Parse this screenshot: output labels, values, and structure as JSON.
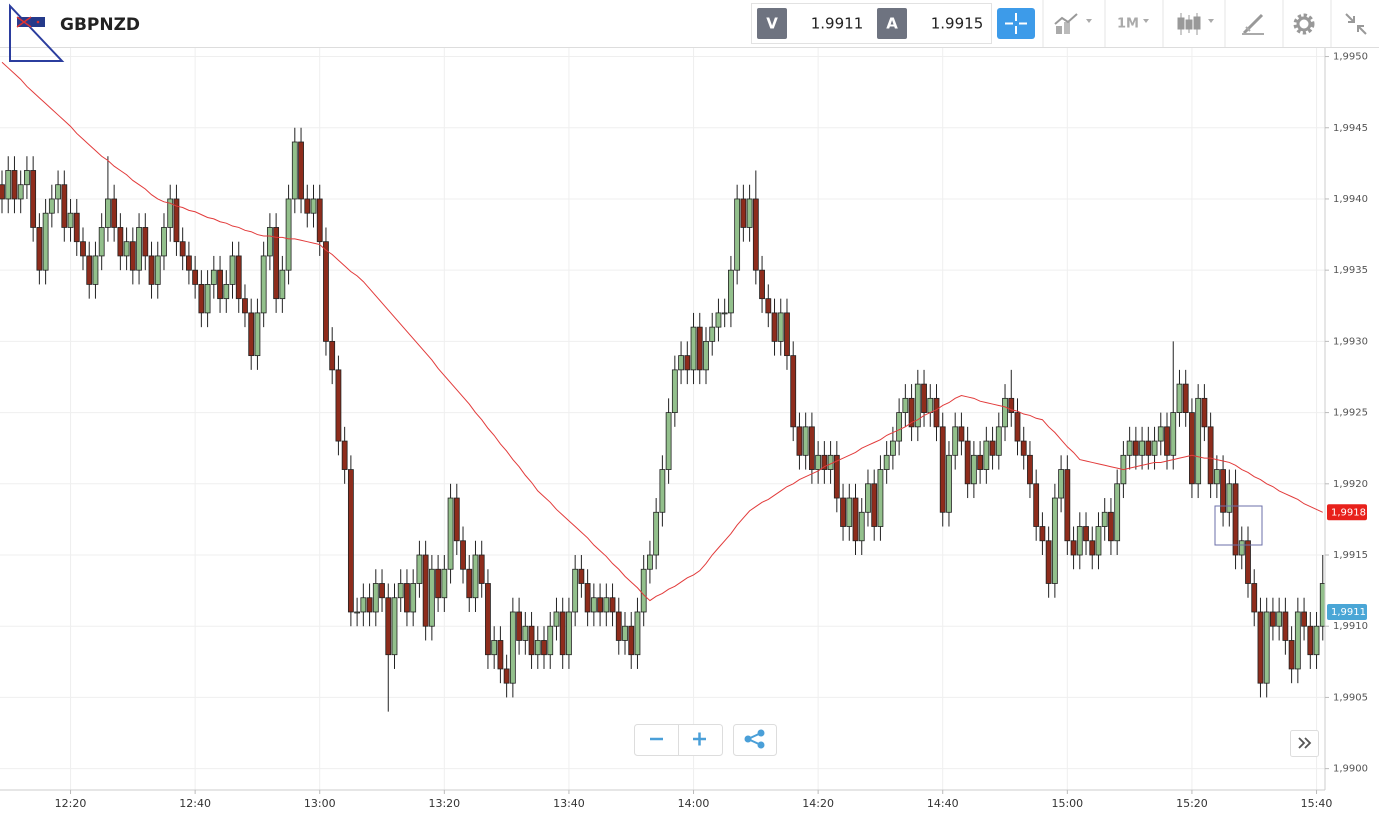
{
  "toolbar": {
    "symbol": "GBPNZD",
    "bid_label": "V",
    "bid": 1.9911,
    "ask_label": "A",
    "ask": 1.9915,
    "timeframe": "1M"
  },
  "chart_data": {
    "type": "candlestick",
    "categories": [
      null,
      null,
      null,
      null,
      null,
      null,
      null,
      null,
      null,
      null,
      null,
      "12:20",
      null,
      null,
      null,
      null,
      null,
      null,
      null,
      null,
      null,
      null,
      null,
      null,
      null,
      null,
      null,
      null,
      null,
      null,
      null,
      "12:40",
      null,
      null,
      null,
      null,
      null,
      null,
      null,
      null,
      null,
      null,
      null,
      null,
      null,
      null,
      null,
      null,
      null,
      null,
      null,
      "13:00",
      null,
      null,
      null,
      null,
      null,
      null,
      null,
      null,
      null,
      null,
      null,
      null,
      null,
      null,
      null,
      null,
      null,
      null,
      null,
      "13:20",
      null,
      null,
      null,
      null,
      null,
      null,
      null,
      null,
      null,
      null,
      null,
      null,
      null,
      null,
      null,
      null,
      null,
      null,
      null,
      "13:40",
      null,
      null,
      null,
      null,
      null,
      null,
      null,
      null,
      null,
      null,
      null,
      null,
      null,
      null,
      null,
      null,
      null,
      null,
      null,
      "14:00",
      null,
      null,
      null,
      null,
      null,
      null,
      null,
      null,
      null,
      null,
      null,
      null,
      null,
      null,
      null,
      null,
      null,
      null,
      null,
      "14:20",
      null,
      null,
      null,
      null,
      null,
      null,
      null,
      null,
      null,
      null,
      null,
      null,
      null,
      null,
      null,
      null,
      null,
      null,
      null,
      "14:40",
      null,
      null,
      null,
      null,
      null,
      null,
      null,
      null,
      null,
      null,
      null,
      null,
      null,
      null,
      null,
      null,
      null,
      null,
      null,
      "15:00",
      null,
      null,
      null,
      null,
      null,
      null,
      null,
      null,
      null,
      null,
      null,
      null,
      null,
      null,
      null,
      null,
      null,
      null,
      null,
      "15:20",
      null,
      null,
      null,
      null,
      null,
      null,
      null,
      null,
      null,
      null,
      null,
      null,
      null,
      null,
      null,
      null,
      null,
      null,
      null,
      "15:40",
      null
    ],
    "open": [
      1.9941,
      1.994,
      1.9942,
      1.994,
      1.9941,
      1.9942,
      1.9938,
      1.9935,
      1.9939,
      1.994,
      1.9941,
      1.9938,
      1.9939,
      1.9937,
      1.9936,
      1.9934,
      1.9936,
      1.9938,
      1.994,
      1.9938,
      1.9936,
      1.9937,
      1.9935,
      1.9938,
      1.9936,
      1.9934,
      1.9936,
      1.9938,
      1.994,
      1.9937,
      1.9936,
      1.9935,
      1.9934,
      1.9932,
      1.9934,
      1.9935,
      1.9933,
      1.9934,
      1.9936,
      1.9933,
      1.9932,
      1.9929,
      1.9932,
      1.9936,
      1.9938,
      1.9933,
      1.9935,
      1.994,
      1.9944,
      1.994,
      1.9939,
      1.994,
      1.9937,
      1.993,
      1.9928,
      1.9923,
      1.9921,
      1.9911,
      1.9911,
      1.9912,
      1.9911,
      1.9913,
      1.9912,
      1.9908,
      1.9912,
      1.9913,
      1.9911,
      1.9913,
      1.9915,
      1.991,
      1.9914,
      1.9912,
      1.9914,
      1.9919,
      1.9916,
      1.9914,
      1.9912,
      1.9915,
      1.9913,
      1.9908,
      1.9909,
      1.9907,
      1.9906,
      1.9911,
      1.9909,
      1.991,
      1.9908,
      1.9909,
      1.9908,
      1.991,
      1.9911,
      1.9908,
      1.9911,
      1.9914,
      1.9913,
      1.9911,
      1.9912,
      1.9911,
      1.9912,
      1.9911,
      1.9909,
      1.991,
      1.9908,
      1.9911,
      1.9914,
      1.9915,
      1.9918,
      1.9921,
      1.9925,
      1.9928,
      1.9929,
      1.9928,
      1.9931,
      1.9928,
      1.993,
      1.9931,
      1.9932,
      1.9932,
      1.9935,
      1.994,
      1.9938,
      1.994,
      1.9935,
      1.9933,
      1.9932,
      1.993,
      1.9932,
      1.9929,
      1.9924,
      1.9922,
      1.9924,
      1.9921,
      1.9922,
      1.9921,
      1.9922,
      1.9919,
      1.9917,
      1.9919,
      1.9916,
      1.9918,
      1.992,
      1.9917,
      1.9921,
      1.9922,
      1.9923,
      1.9925,
      1.9926,
      1.9924,
      1.9927,
      1.9925,
      1.9926,
      1.9924,
      1.9918,
      1.9922,
      1.9924,
      1.9923,
      1.992,
      1.9922,
      1.9921,
      1.9923,
      1.9922,
      1.9924,
      1.9926,
      1.9925,
      1.9923,
      1.9922,
      1.992,
      1.9917,
      1.9916,
      1.9913,
      1.9919,
      1.9921,
      1.9916,
      1.9915,
      1.9917,
      1.9916,
      1.9915,
      1.9917,
      1.9918,
      1.9916,
      1.992,
      1.9922,
      1.9923,
      1.9922,
      1.9923,
      1.9922,
      1.9923,
      1.9924,
      1.9922,
      1.9925,
      1.9927,
      1.9925,
      1.992,
      1.9926,
      1.9924,
      1.992,
      1.9921,
      1.9918,
      1.992,
      1.9915,
      1.9916,
      1.9913,
      1.9911,
      1.9906,
      1.9911,
      1.991,
      1.9911,
      1.9909,
      1.9907,
      1.9911,
      1.991,
      1.9908,
      1.991
    ],
    "high": [
      1.9942,
      1.9943,
      1.9943,
      1.9942,
      1.9943,
      1.9943,
      1.9939,
      1.994,
      1.9941,
      1.9942,
      1.9942,
      1.994,
      1.994,
      1.9938,
      1.9937,
      1.9937,
      1.9939,
      1.9943,
      1.9941,
      1.9939,
      1.9938,
      1.9938,
      1.9939,
      1.9939,
      1.9937,
      1.9937,
      1.9939,
      1.9941,
      1.9941,
      1.9938,
      1.9937,
      1.9936,
      1.9935,
      1.9935,
      1.9936,
      1.9936,
      1.9935,
      1.9937,
      1.9937,
      1.9934,
      1.9933,
      1.9933,
      1.9937,
      1.9939,
      1.9939,
      1.9936,
      1.9941,
      1.9945,
      1.9945,
      1.9941,
      1.9941,
      1.9941,
      1.9938,
      1.9931,
      1.9929,
      1.9924,
      1.9922,
      1.9912,
      1.9913,
      1.9913,
      1.9914,
      1.9914,
      1.9913,
      1.9913,
      1.9914,
      1.9914,
      1.9914,
      1.9916,
      1.9916,
      1.9915,
      1.9915,
      1.9915,
      1.992,
      1.992,
      1.9917,
      1.9915,
      1.9916,
      1.9916,
      1.9914,
      1.991,
      1.991,
      1.9908,
      1.9912,
      1.9912,
      1.9911,
      1.9911,
      1.991,
      1.991,
      1.9911,
      1.9912,
      1.9912,
      1.9912,
      1.9915,
      1.9915,
      1.9914,
      1.9913,
      1.9913,
      1.9913,
      1.9913,
      1.9912,
      1.9911,
      1.9911,
      1.9912,
      1.9915,
      1.9916,
      1.9919,
      1.9922,
      1.9926,
      1.9929,
      1.993,
      1.993,
      1.9932,
      1.9932,
      1.9931,
      1.9932,
      1.9933,
      1.9933,
      1.9936,
      1.9941,
      1.9941,
      1.9941,
      1.9942,
      1.9936,
      1.9934,
      1.9933,
      1.9933,
      1.9933,
      1.993,
      1.9925,
      1.9925,
      1.9925,
      1.9923,
      1.9923,
      1.9923,
      1.9923,
      1.992,
      1.992,
      1.992,
      1.9919,
      1.9921,
      1.9921,
      1.9922,
      1.9923,
      1.9924,
      1.9926,
      1.9927,
      1.9927,
      1.9928,
      1.9928,
      1.9927,
      1.9927,
      1.9925,
      1.9923,
      1.9925,
      1.9925,
      1.9924,
      1.9923,
      1.9923,
      1.9924,
      1.9924,
      1.9925,
      1.9927,
      1.9928,
      1.9926,
      1.9924,
      1.9923,
      1.9921,
      1.9918,
      1.9917,
      1.992,
      1.9922,
      1.9922,
      1.9917,
      1.9918,
      1.9918,
      1.9917,
      1.9918,
      1.9919,
      1.9919,
      1.9921,
      1.9923,
      1.9924,
      1.9924,
      1.9924,
      1.9924,
      1.9924,
      1.9925,
      1.9925,
      1.993,
      1.9928,
      1.9928,
      1.9926,
      1.9927,
      1.9927,
      1.9925,
      1.9922,
      1.9922,
      1.9921,
      1.9921,
      1.9917,
      1.9917,
      1.9914,
      1.9912,
      1.9912,
      1.9912,
      1.9912,
      1.9912,
      1.991,
      1.9912,
      1.9912,
      1.9911,
      1.9911,
      1.9915
    ],
    "low": [
      1.9939,
      1.9939,
      1.9939,
      1.9939,
      1.994,
      1.9937,
      1.9934,
      1.9934,
      1.9938,
      1.9939,
      1.9937,
      1.9937,
      1.9936,
      1.9935,
      1.9933,
      1.9933,
      1.9935,
      1.9937,
      1.9937,
      1.9935,
      1.9935,
      1.9934,
      1.9934,
      1.9935,
      1.9933,
      1.9933,
      1.9935,
      1.9937,
      1.9936,
      1.9935,
      1.9934,
      1.9933,
      1.9931,
      1.9931,
      1.9933,
      1.9932,
      1.9932,
      1.9933,
      1.9932,
      1.9931,
      1.9928,
      1.9928,
      1.9931,
      1.9935,
      1.9932,
      1.9932,
      1.9934,
      1.9939,
      1.9939,
      1.9938,
      1.9938,
      1.9936,
      1.9929,
      1.9927,
      1.9922,
      1.992,
      1.991,
      1.991,
      1.991,
      1.991,
      1.991,
      1.9911,
      1.9904,
      1.9907,
      1.9911,
      1.991,
      1.991,
      1.9912,
      1.9909,
      1.9909,
      1.9911,
      1.9911,
      1.9913,
      1.9915,
      1.9913,
      1.9911,
      1.9911,
      1.9912,
      1.9907,
      1.9907,
      1.9906,
      1.9905,
      1.9905,
      1.9908,
      1.9908,
      1.9907,
      1.9907,
      1.9907,
      1.9907,
      1.9909,
      1.9907,
      1.9907,
      1.991,
      1.9912,
      1.991,
      1.991,
      1.991,
      1.991,
      1.991,
      1.9908,
      1.9908,
      1.9907,
      1.9907,
      1.991,
      1.9913,
      1.9914,
      1.9917,
      1.992,
      1.9924,
      1.9927,
      1.9927,
      1.9927,
      1.9927,
      1.9927,
      1.9929,
      1.993,
      1.9931,
      1.9931,
      1.9934,
      1.9937,
      1.9937,
      1.9934,
      1.9932,
      1.9931,
      1.9929,
      1.9929,
      1.9928,
      1.9923,
      1.9921,
      1.9921,
      1.992,
      1.992,
      1.992,
      1.992,
      1.9918,
      1.9916,
      1.9916,
      1.9915,
      1.9915,
      1.9917,
      1.9916,
      1.9916,
      1.992,
      1.9921,
      1.9922,
      1.9924,
      1.9923,
      1.9923,
      1.9924,
      1.9924,
      1.9923,
      1.9917,
      1.9917,
      1.9921,
      1.9922,
      1.9919,
      1.9919,
      1.992,
      1.992,
      1.9921,
      1.9921,
      1.9923,
      1.9924,
      1.9922,
      1.9921,
      1.9919,
      1.9916,
      1.9915,
      1.9912,
      1.9912,
      1.9918,
      1.9915,
      1.9914,
      1.9914,
      1.9915,
      1.9914,
      1.9914,
      1.9916,
      1.9915,
      1.9915,
      1.9919,
      1.9921,
      1.9921,
      1.9921,
      1.9921,
      1.9921,
      1.9922,
      1.9921,
      1.9921,
      1.9924,
      1.9924,
      1.9919,
      1.9919,
      1.9923,
      1.9919,
      1.9919,
      1.9917,
      1.9917,
      1.9914,
      1.9914,
      1.9912,
      1.991,
      1.9905,
      1.9905,
      1.9909,
      1.9909,
      1.9908,
      1.9906,
      1.9906,
      1.9909,
      1.9907,
      1.9907,
      1.9909
    ],
    "close": [
      1.994,
      1.9942,
      1.994,
      1.9941,
      1.9942,
      1.9938,
      1.9935,
      1.9939,
      1.994,
      1.9941,
      1.9938,
      1.9939,
      1.9937,
      1.9936,
      1.9934,
      1.9936,
      1.9938,
      1.994,
      1.9938,
      1.9936,
      1.9937,
      1.9935,
      1.9938,
      1.9936,
      1.9934,
      1.9936,
      1.9938,
      1.994,
      1.9937,
      1.9936,
      1.9935,
      1.9934,
      1.9932,
      1.9934,
      1.9935,
      1.9933,
      1.9934,
      1.9936,
      1.9933,
      1.9932,
      1.9929,
      1.9932,
      1.9936,
      1.9938,
      1.9933,
      1.9935,
      1.994,
      1.9944,
      1.994,
      1.9939,
      1.994,
      1.9937,
      1.993,
      1.9928,
      1.9923,
      1.9921,
      1.9911,
      1.9911,
      1.9912,
      1.9911,
      1.9913,
      1.9912,
      1.9908,
      1.9912,
      1.9913,
      1.9911,
      1.9913,
      1.9915,
      1.991,
      1.9914,
      1.9912,
      1.9914,
      1.9919,
      1.9916,
      1.9914,
      1.9912,
      1.9915,
      1.9913,
      1.9908,
      1.9909,
      1.9907,
      1.9906,
      1.9911,
      1.9909,
      1.991,
      1.9908,
      1.9909,
      1.9908,
      1.991,
      1.9911,
      1.9908,
      1.9911,
      1.9914,
      1.9913,
      1.9911,
      1.9912,
      1.9911,
      1.9912,
      1.9911,
      1.9909,
      1.991,
      1.9908,
      1.9911,
      1.9914,
      1.9915,
      1.9918,
      1.9921,
      1.9925,
      1.9928,
      1.9929,
      1.9928,
      1.9931,
      1.9928,
      1.993,
      1.9931,
      1.9932,
      1.9932,
      1.9935,
      1.994,
      1.9938,
      1.994,
      1.9935,
      1.9933,
      1.9932,
      1.993,
      1.9932,
      1.9929,
      1.9924,
      1.9922,
      1.9924,
      1.9921,
      1.9922,
      1.9921,
      1.9922,
      1.9919,
      1.9917,
      1.9919,
      1.9916,
      1.9918,
      1.992,
      1.9917,
      1.9921,
      1.9922,
      1.9923,
      1.9925,
      1.9926,
      1.9924,
      1.9927,
      1.9925,
      1.9926,
      1.9924,
      1.9918,
      1.9922,
      1.9924,
      1.9923,
      1.992,
      1.9922,
      1.9921,
      1.9923,
      1.9922,
      1.9924,
      1.9926,
      1.9925,
      1.9923,
      1.9922,
      1.992,
      1.9917,
      1.9916,
      1.9913,
      1.9919,
      1.9921,
      1.9916,
      1.9915,
      1.9917,
      1.9916,
      1.9915,
      1.9917,
      1.9918,
      1.9916,
      1.992,
      1.9922,
      1.9923,
      1.9922,
      1.9923,
      1.9922,
      1.9923,
      1.9924,
      1.9922,
      1.9925,
      1.9927,
      1.9925,
      1.992,
      1.9926,
      1.9924,
      1.992,
      1.9921,
      1.9918,
      1.992,
      1.9915,
      1.9916,
      1.9913,
      1.9911,
      1.9906,
      1.9911,
      1.991,
      1.9911,
      1.9909,
      1.9907,
      1.9911,
      1.991,
      1.9908,
      1.991,
      1.9913
    ],
    "up_color": "#93c08c",
    "down_color": "#8e2c1c",
    "ma": {
      "color": "#e23b3b",
      "values": [
        1.99496,
        1.99492,
        1.99488,
        1.99484,
        1.99479,
        1.99475,
        1.99471,
        1.99467,
        1.99463,
        1.99459,
        1.99455,
        1.99451,
        1.99446,
        1.99442,
        1.99438,
        1.99434,
        1.9943,
        1.99427,
        1.99423,
        1.9942,
        1.99417,
        1.99413,
        1.9941,
        1.99407,
        1.99403,
        1.994,
        1.99398,
        1.99397,
        1.99395,
        1.99394,
        1.99392,
        1.99391,
        1.99389,
        1.99387,
        1.99386,
        1.99384,
        1.99383,
        1.99381,
        1.9938,
        1.99378,
        1.99377,
        1.99375,
        1.99374,
        1.99374,
        1.99373,
        1.99373,
        1.99372,
        1.99372,
        1.99371,
        1.9937,
        1.99369,
        1.99368,
        1.99364,
        1.99361,
        1.99357,
        1.99353,
        1.99349,
        1.99346,
        1.99342,
        1.99337,
        1.99332,
        1.99327,
        1.99322,
        1.99317,
        1.99312,
        1.99307,
        1.99302,
        1.99297,
        1.99292,
        1.99287,
        1.99281,
        1.99276,
        1.99271,
        1.99266,
        1.99261,
        1.99256,
        1.9925,
        1.99245,
        1.99239,
        1.99234,
        1.99228,
        1.99223,
        1.99217,
        1.99212,
        1.99206,
        1.99201,
        1.99195,
        1.99191,
        1.99187,
        1.99182,
        1.99178,
        1.99174,
        1.9917,
        1.99166,
        1.99162,
        1.99157,
        1.99153,
        1.99149,
        1.99144,
        1.9914,
        1.99135,
        1.99131,
        1.99127,
        1.99122,
        1.99118,
        1.99121,
        1.99123,
        1.99126,
        1.99128,
        1.99131,
        1.99134,
        1.99136,
        1.99139,
        1.99144,
        1.9915,
        1.99155,
        1.9916,
        1.99165,
        1.99171,
        1.99176,
        1.99181,
        1.99184,
        1.99187,
        1.99189,
        1.99192,
        1.99195,
        1.99198,
        1.992,
        1.99203,
        1.99205,
        1.99207,
        1.99209,
        1.99212,
        1.99214,
        1.99216,
        1.99218,
        1.9922,
        1.99222,
        1.99225,
        1.99227,
        1.99229,
        1.99231,
        1.99234,
        1.99236,
        1.99238,
        1.9924,
        1.99243,
        1.99245,
        1.99248,
        1.9925,
        1.99252,
        1.99255,
        1.99257,
        1.9926,
        1.99262,
        1.99261,
        1.9926,
        1.99258,
        1.99257,
        1.99256,
        1.99255,
        1.99254,
        1.99252,
        1.99251,
        1.99249,
        1.99248,
        1.99246,
        1.99245,
        1.9924,
        1.99236,
        1.99231,
        1.99226,
        1.99222,
        1.99217,
        1.99216,
        1.99215,
        1.99214,
        1.99213,
        1.99212,
        1.99211,
        1.9921,
        1.99211,
        1.99212,
        1.99213,
        1.99214,
        1.99215,
        1.99215,
        1.99216,
        1.99217,
        1.99218,
        1.99219,
        1.9922,
        1.99219,
        1.99218,
        1.99218,
        1.99217,
        1.99216,
        1.99215,
        1.99213,
        1.9921,
        1.99208,
        1.99205,
        1.99203,
        1.992,
        1.99198,
        1.99195,
        1.99193,
        1.99191,
        1.99189,
        1.99186,
        1.99184,
        1.99182,
        1.9918
      ]
    },
    "ylim": [
      1.98985,
      1.99506
    ],
    "yticks": [
      {
        "value": 1.99,
        "label": "1,9900"
      },
      {
        "value": 1.9905,
        "label": "1,9905"
      },
      {
        "value": 1.991,
        "label": "1,9910"
      },
      {
        "value": 1.9915,
        "label": "1,9915"
      },
      {
        "value": 1.992,
        "label": "1,9920"
      },
      {
        "value": 1.9925,
        "label": "1,9925"
      },
      {
        "value": 1.993,
        "label": "1,9930"
      },
      {
        "value": 1.9935,
        "label": "1,9935"
      },
      {
        "value": 1.994,
        "label": "1,9940"
      },
      {
        "value": 1.9945,
        "label": "1,9945"
      },
      {
        "value": 1.995,
        "label": "1,9950"
      }
    ],
    "grid": true,
    "price_tags": [
      {
        "value": 1.9918,
        "label": "1,9918",
        "color": "#e8211b"
      },
      {
        "value": 1.9911,
        "label": "1,9911",
        "color": "#4aa6d6"
      }
    ]
  }
}
